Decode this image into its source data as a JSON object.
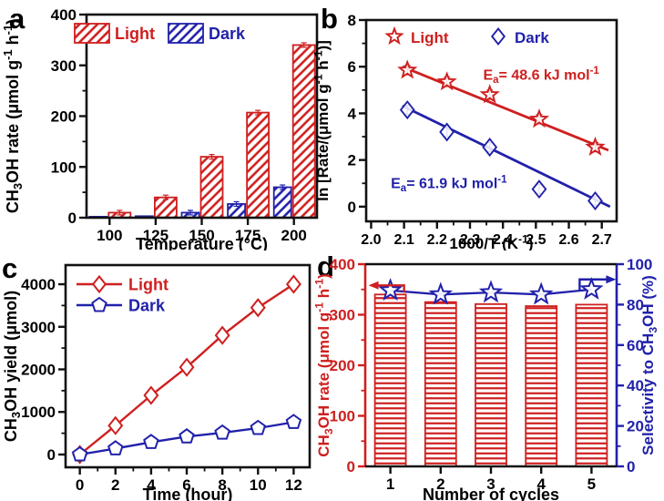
{
  "figure": {
    "background": "#ffffff",
    "colors": {
      "red": "#cf1f1f",
      "blue": "#2121ab",
      "black": "#111111"
    }
  },
  "panels": [
    {
      "letter": "a"
    },
    {
      "letter": "b"
    },
    {
      "letter": "c"
    },
    {
      "letter": "d"
    }
  ],
  "chart_data": [
    {
      "panel": "a",
      "type": "bar",
      "categories": [
        "100",
        "125",
        "150",
        "175",
        "200"
      ],
      "series": [
        {
          "name": "Dark",
          "color": "blue",
          "hatch": "diagonal",
          "values": [
            2,
            3,
            10,
            27,
            60
          ]
        },
        {
          "name": "Light",
          "color": "red",
          "hatch": "diagonal",
          "values": [
            10,
            40,
            120,
            207,
            340
          ]
        }
      ],
      "legend": [
        "Light",
        "Dark"
      ],
      "legend_position": "top-inside",
      "xlabel": "Temperature (°C)",
      "ylabel": "CH_{3}OH rate (μmol g^{-1} h^{-1})",
      "ylim": [
        0,
        400
      ],
      "yticks": [
        0,
        100,
        200,
        300,
        400
      ],
      "grid": false
    },
    {
      "panel": "b",
      "type": "scatter",
      "x": [
        2.11,
        2.23,
        2.36,
        2.51,
        2.68
      ],
      "series": [
        {
          "name": "Light",
          "marker": "star",
          "color": "red",
          "values": [
            5.85,
            5.35,
            4.8,
            3.75,
            2.55
          ],
          "fit_line": [
            [
              2.095,
              6.0
            ],
            [
              2.72,
              2.42
            ]
          ]
        },
        {
          "name": "Dark",
          "marker": "diamond",
          "color": "blue",
          "values": [
            4.15,
            3.2,
            2.55,
            0.75,
            0.25
          ],
          "fit_line": [
            [
              2.095,
              4.32
            ],
            [
              2.725,
              0.0
            ]
          ]
        }
      ],
      "annotations": [
        {
          "text": "E_{a}= 48.6 kJ mol^{-1}",
          "color": "red",
          "x": 2.34,
          "y": 5.45
        },
        {
          "text": "E_{a}= 61.9 kJ mol^{-1}",
          "color": "blue",
          "x": 2.06,
          "y": 0.8
        }
      ],
      "legend_position": "top-inside",
      "xlabel": "1000/T (K^{-1})",
      "ylabel": "ln [Rate/(μmol g^{-1} h^{-1})]",
      "xlim": [
        1.985,
        2.745
      ],
      "xticks": [
        "2.0",
        "2.1",
        "2.2",
        "2.3",
        "2.4",
        "2.5",
        "2.6",
        "2.7"
      ],
      "ylim": [
        -0.63,
        8
      ],
      "yticks": [
        0,
        2,
        4,
        6,
        8
      ],
      "grid": false
    },
    {
      "panel": "c",
      "type": "line",
      "x": [
        0,
        2,
        4,
        6,
        8,
        10,
        12
      ],
      "series": [
        {
          "name": "Light",
          "marker": "diamond",
          "color": "red",
          "values": [
            0,
            680,
            1390,
            2050,
            2800,
            3450,
            4000
          ]
        },
        {
          "name": "Dark",
          "marker": "pentagon",
          "color": "blue",
          "values": [
            0,
            140,
            290,
            420,
            510,
            620,
            760
          ]
        }
      ],
      "legend_position": "top-left-inside",
      "xlabel": "Time (hour)",
      "ylabel": "CH_{3}OH yield  (μmol)",
      "xlim": [
        -0.8,
        12.9
      ],
      "xticks": [
        0,
        2,
        4,
        6,
        8,
        10,
        12
      ],
      "ylim": [
        -300,
        4450
      ],
      "yticks": [
        0,
        1000,
        2000,
        3000,
        4000
      ],
      "grid": false
    },
    {
      "panel": "d",
      "type": "bar-dual-axis",
      "categories": [
        "1",
        "2",
        "3",
        "4",
        "5"
      ],
      "bars": {
        "name": "CH3OH rate",
        "color": "red",
        "hatch": "horizontal",
        "values": [
          340,
          325,
          321,
          317,
          320
        ]
      },
      "line": {
        "name": "Selectivity",
        "color": "blue",
        "marker": "star",
        "values": [
          87,
          85,
          86,
          85,
          87.5
        ]
      },
      "xlabel": "Number of cycles",
      "ylabel_left": "CH_{3}OH rate (μmol g^{-1} h^{-1})",
      "ylabel_right": "Selectivity to CH_{3}OH (%)",
      "ylim_left": [
        0,
        400
      ],
      "yticks_left": [
        0,
        100,
        200,
        300,
        400
      ],
      "ylim_right": [
        0,
        100
      ],
      "yticks_right": [
        0,
        20,
        40,
        60,
        80,
        100
      ],
      "arrows": [
        {
          "color": "red",
          "direction": "left",
          "at_cycle": 1
        },
        {
          "color": "blue",
          "direction": "right",
          "at_cycle": 5
        }
      ],
      "grid": false
    }
  ]
}
